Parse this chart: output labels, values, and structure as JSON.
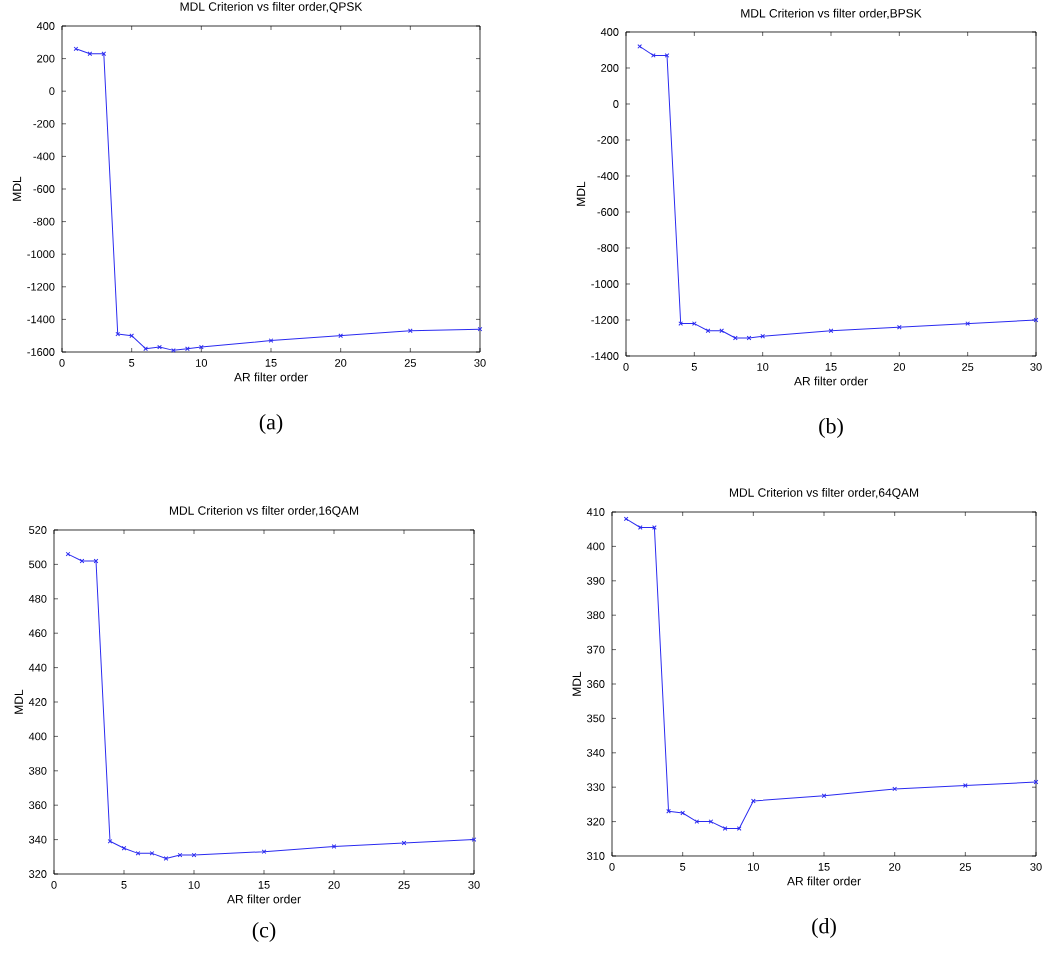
{
  "chart_data": [
    {
      "type": "line",
      "title": "MDL Criterion vs filter order,QPSK",
      "xlabel": "AR filter order",
      "ylabel": "MDL",
      "color": "#2b2bf0",
      "marker": "cross",
      "line_style": "solid",
      "x": [
        1,
        2,
        3,
        4,
        5,
        6,
        7,
        8,
        9,
        10,
        15,
        20,
        25,
        30
      ],
      "values": [
        260,
        230,
        230,
        -1490,
        -1500,
        -1580,
        -1570,
        -1590,
        -1580,
        -1570,
        -1530,
        -1500,
        -1470,
        -1460
      ],
      "xlim": [
        0,
        30
      ],
      "ylim": [
        -1600,
        400
      ],
      "xticks": [
        0,
        5,
        10,
        15,
        20,
        25,
        30
      ],
      "yticks": [
        -1600,
        -1400,
        -1200,
        -1000,
        -800,
        -600,
        -400,
        -200,
        0,
        200,
        400
      ],
      "annotations": [
        "(a)"
      ]
    },
    {
      "type": "line",
      "title": "MDL Criterion vs filter order,BPSK",
      "xlabel": "AR filter order",
      "ylabel": "MDL",
      "color": "#2b2bf0",
      "marker": "cross",
      "line_style": "solid",
      "x": [
        1,
        2,
        3,
        4,
        5,
        6,
        7,
        8,
        9,
        10,
        15,
        20,
        25,
        30
      ],
      "values": [
        320,
        270,
        270,
        -1220,
        -1220,
        -1260,
        -1260,
        -1300,
        -1300,
        -1290,
        -1260,
        -1240,
        -1220,
        -1200
      ],
      "xlim": [
        0,
        30
      ],
      "ylim": [
        -1400,
        400
      ],
      "xticks": [
        0,
        5,
        10,
        15,
        20,
        25,
        30
      ],
      "yticks": [
        -1400,
        -1200,
        -1000,
        -800,
        -600,
        -400,
        -200,
        0,
        200,
        400
      ],
      "annotations": [
        "(b)"
      ]
    },
    {
      "type": "line",
      "title": "MDL Criterion vs filter order,16QAM",
      "xlabel": "AR filter order",
      "ylabel": "MDL",
      "color": "#2b2bf0",
      "marker": "cross",
      "line_style": "solid",
      "x": [
        1,
        2,
        3,
        4,
        5,
        6,
        7,
        8,
        9,
        10,
        15,
        20,
        25,
        30
      ],
      "values": [
        506,
        502,
        502,
        339,
        335,
        332,
        332,
        329,
        331,
        331,
        333,
        336,
        338,
        340
      ],
      "xlim": [
        0,
        30
      ],
      "ylim": [
        320,
        520
      ],
      "xticks": [
        0,
        5,
        10,
        15,
        20,
        25,
        30
      ],
      "yticks": [
        320,
        340,
        360,
        380,
        400,
        420,
        440,
        460,
        480,
        500,
        520
      ],
      "annotations": [
        "(c)"
      ]
    },
    {
      "type": "line",
      "title": "MDL Criterion vs filter order,64QAM",
      "xlabel": "AR filter order",
      "ylabel": "MDL",
      "color": "#2b2bf0",
      "marker": "cross",
      "line_style": "solid",
      "x": [
        1,
        2,
        3,
        4,
        5,
        6,
        7,
        8,
        9,
        10,
        15,
        20,
        25,
        30
      ],
      "values": [
        408,
        405.5,
        405.5,
        323,
        322.5,
        320,
        320,
        318,
        318,
        326,
        327.5,
        329.5,
        330.5,
        331.5
      ],
      "xlim": [
        0,
        30
      ],
      "ylim": [
        310,
        410
      ],
      "xticks": [
        0,
        5,
        10,
        15,
        20,
        25,
        30
      ],
      "yticks": [
        310,
        320,
        330,
        340,
        350,
        360,
        370,
        380,
        390,
        400,
        410
      ],
      "annotations": [
        "(d)"
      ]
    }
  ]
}
